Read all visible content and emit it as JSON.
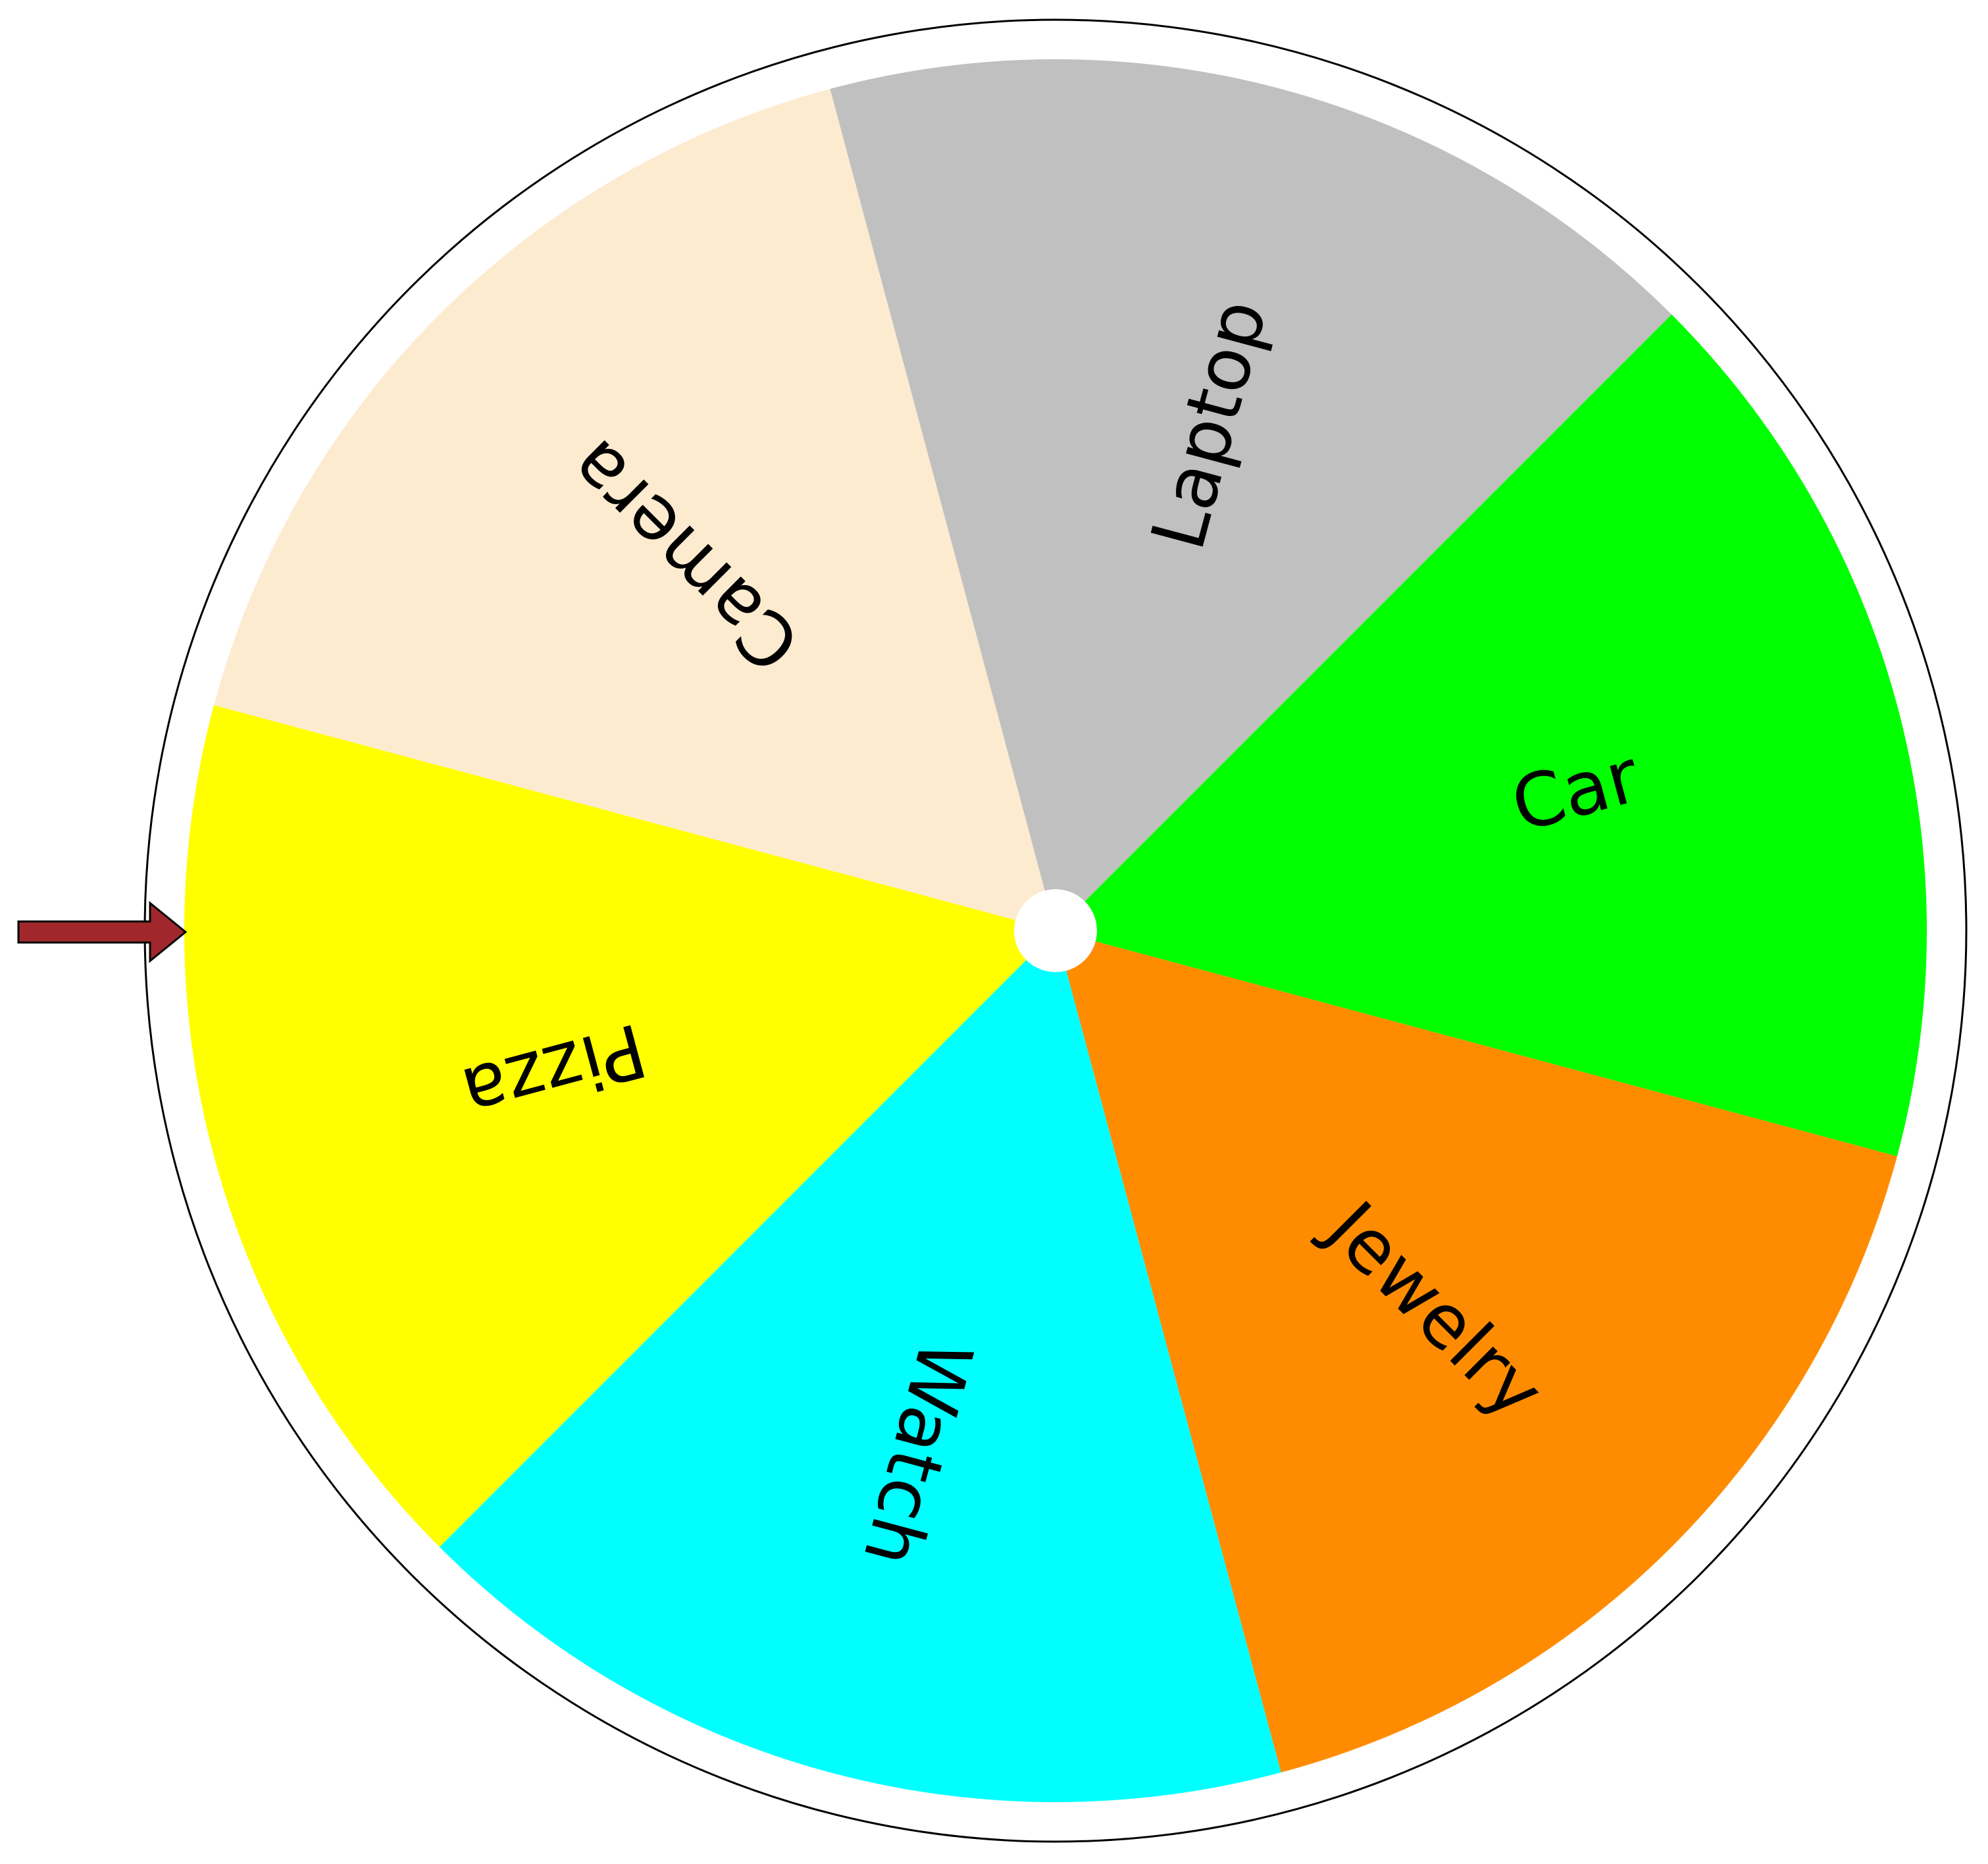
{
  "wheel": {
    "pointer_color": "#a0282d",
    "outer_ring_color": "#ffffff",
    "outline_color": "#000000",
    "hub_color": "#ffffff",
    "pointer_direction": "left",
    "segments": [
      {
        "label": "Laptop",
        "color": "#c0c0c0"
      },
      {
        "label": "Car",
        "color": "#00ff00"
      },
      {
        "label": "Jewelry",
        "color": "#ff8c00"
      },
      {
        "label": "Watch",
        "color": "#00ffff"
      },
      {
        "label": "Pizza",
        "color": "#ffff00"
      },
      {
        "label": "Camera",
        "color": "#fdebd0"
      }
    ]
  }
}
